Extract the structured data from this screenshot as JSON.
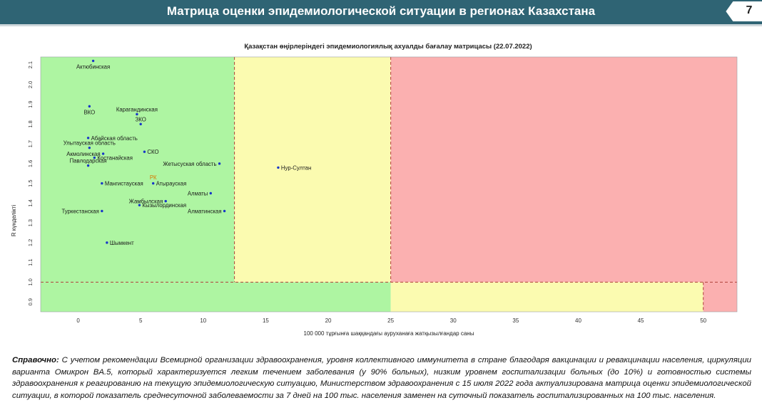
{
  "header": {
    "title": "Матрица оценки эпидемиологической ситуации в регионах Казахстана",
    "page_number": "7"
  },
  "colors": {
    "header_bg": "#2f6474",
    "green": "#aef5a2",
    "yellow": "#fbfbb0",
    "red": "#fbb0b0",
    "point": "#1836c8",
    "point_rk": "#d97a00",
    "threshold_line": "#b0403a"
  },
  "chart_data": {
    "type": "scatter",
    "title": "Қазақстан өңірлеріндегі эпидемиологиялық ахуалды бағалау матрицасы  (22.07.2022)",
    "xlabel": "100 000 тұрғынға шаққандағы ауруханаға жатқызылғандар саны",
    "ylabel": "R күнделікті",
    "x_ticks": [
      0,
      5,
      10,
      15,
      20,
      25,
      30,
      35,
      40,
      45,
      50
    ],
    "y_ticks": [
      0.9,
      1.0,
      1.1,
      1.2,
      1.3,
      1.4,
      1.5,
      1.6,
      1.7,
      1.8,
      1.9,
      2.0,
      2.1
    ],
    "y_tick_labels": [
      "0.9",
      "1.0",
      "1.1",
      "1.2",
      "1.3",
      "1.4",
      "1.5",
      "1.6",
      "1.7",
      "1.8",
      "1.9",
      "2.0",
      "2.1"
    ],
    "xlim": [
      -3,
      52.7
    ],
    "ylim": [
      0.85,
      2.14
    ],
    "thresholds": {
      "x_green_yellow": 12.5,
      "x_yellow_red": 25,
      "x_low_yellow_red": 50,
      "y": 1.0
    },
    "grid": false,
    "points": [
      {
        "label": "Актюбинская",
        "x": 1.2,
        "y": 2.12,
        "label_pos": "below"
      },
      {
        "label": "ВКО",
        "x": 0.9,
        "y": 1.89,
        "label_pos": "below"
      },
      {
        "label": "Карагандинская",
        "x": 4.7,
        "y": 1.85,
        "label_pos": "above"
      },
      {
        "label": "ЗКО",
        "x": 5.0,
        "y": 1.8,
        "label_pos": "above"
      },
      {
        "label": "Абайская область",
        "x": 0.8,
        "y": 1.73,
        "label_pos": "right"
      },
      {
        "label": "Улытауская область",
        "x": 0.9,
        "y": 1.68,
        "label_pos": "above"
      },
      {
        "label": "СКО",
        "x": 5.3,
        "y": 1.66,
        "label_pos": "right"
      },
      {
        "label": "Акмолинская",
        "x": 2.0,
        "y": 1.65,
        "label_pos": "left"
      },
      {
        "label": "Костанайская",
        "x": 1.3,
        "y": 1.63,
        "label_pos": "right"
      },
      {
        "label": "Павлодарская",
        "x": 0.8,
        "y": 1.59,
        "label_pos": "above"
      },
      {
        "label": "Жетысуская область",
        "x": 11.3,
        "y": 1.6,
        "label_pos": "left"
      },
      {
        "label": "Нур-Султан",
        "x": 16.0,
        "y": 1.58,
        "label_pos": "right"
      },
      {
        "label": "РК",
        "x": 6.0,
        "y": 1.505,
        "label_pos": "above",
        "highlight": true
      },
      {
        "label": "Атырауская",
        "x": 6.0,
        "y": 1.5,
        "label_pos": "right"
      },
      {
        "label": "Мангистауская",
        "x": 1.9,
        "y": 1.5,
        "label_pos": "right"
      },
      {
        "label": "Алматы",
        "x": 10.6,
        "y": 1.45,
        "label_pos": "left"
      },
      {
        "label": "Жамбылская",
        "x": 7.0,
        "y": 1.41,
        "label_pos": "left"
      },
      {
        "label": "Кызылординская",
        "x": 4.9,
        "y": 1.39,
        "label_pos": "right"
      },
      {
        "label": "Туркестанская",
        "x": 1.9,
        "y": 1.36,
        "label_pos": "left"
      },
      {
        "label": "Алматинская",
        "x": 11.7,
        "y": 1.36,
        "label_pos": "left"
      },
      {
        "label": "Шымкент",
        "x": 2.3,
        "y": 1.2,
        "label_pos": "right"
      }
    ]
  },
  "note": {
    "lead": "Справочно:",
    "text": " С учетом рекомендации Всемирной организации здравоохранения, уровня коллективного иммунитета в стране благодаря вакцинации и ревакцинации населения, циркуляции варианта Омикрон BA.5, который характеризуется легким течением заболевания (у 90% больных), низким уровнем госпитализации больных (до 10%) и готовностью системы здравоохранения к реагированию на текущую эпидемиологическую ситуацию, Министерством здравоохранения с 15 июля 2022 года актуализирована матрица оценки эпидемиологической ситуации, в которой показатель  среднесуточной заболеваемости за 7 дней на 100 тыс. населения заменен на  суточный показатель госпитализированных на 100 тыс. населения."
  }
}
